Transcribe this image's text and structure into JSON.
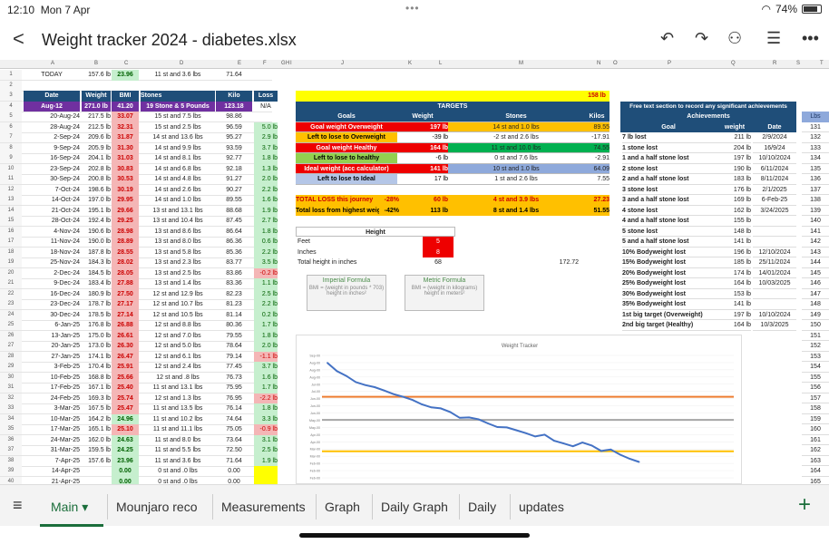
{
  "status": {
    "time": "12:10",
    "date": "Mon 7 Apr",
    "battery": "74%"
  },
  "header": {
    "title": "Weight tracker 2024 - diabetes.xlsx"
  },
  "columns": [
    "A",
    "B",
    "C",
    "D",
    "E",
    "F",
    "G",
    "H",
    "I",
    "J",
    "K",
    "L",
    "M",
    "N",
    "O",
    "P",
    "Q",
    "R",
    "S",
    "T"
  ],
  "row1": {
    "label": "TODAY",
    "weight": "157.6 lb",
    "bmi": "23.96",
    "stones": "11 st and 3.6 lbs",
    "kilo": "71.64"
  },
  "table_headers": {
    "date": "Date",
    "weight": "Weight",
    "bmi": "BMI",
    "stones": "Stones",
    "kilo": "Kilo",
    "loss": "Loss"
  },
  "aug12": {
    "date": "Aug-12",
    "weight": "271.0 lb",
    "bmi": "41.20",
    "stones": "19 Stone & 5 Pounds",
    "kilo": "123.18",
    "loss": "N/A"
  },
  "rows": [
    {
      "d": "20-Aug-24",
      "w": "217.5 lb",
      "b": "33.07",
      "s": "15 st and 7.5 lbs",
      "k": "98.86",
      "l": "",
      "lc": "n",
      "bc": "p"
    },
    {
      "d": "28-Aug-24",
      "w": "212.5 lb",
      "b": "32.31",
      "s": "15 st and 2.5 lbs",
      "k": "96.59",
      "l": "5.0 lb",
      "lc": "g",
      "bc": "p"
    },
    {
      "d": "2-Sep-24",
      "w": "209.6 lb",
      "b": "31.87",
      "s": "14 st and 13.6 lbs",
      "k": "95.27",
      "l": "2.9 lb",
      "lc": "g",
      "bc": "p"
    },
    {
      "d": "9-Sep-24",
      "w": "205.9 lb",
      "b": "31.30",
      "s": "14 st and 9.9 lbs",
      "k": "93.59",
      "l": "3.7 lb",
      "lc": "g",
      "bc": "p"
    },
    {
      "d": "16-Sep-24",
      "w": "204.1 lb",
      "b": "31.03",
      "s": "14 st and 8.1 lbs",
      "k": "92.77",
      "l": "1.8 lb",
      "lc": "g",
      "bc": "p"
    },
    {
      "d": "23-Sep-24",
      "w": "202.8 lb",
      "b": "30.83",
      "s": "14 st and 6.8 lbs",
      "k": "92.18",
      "l": "1.3 lb",
      "lc": "g",
      "bc": "p"
    },
    {
      "d": "30-Sep-24",
      "w": "200.8 lb",
      "b": "30.53",
      "s": "14 st and 4.8 lbs",
      "k": "91.27",
      "l": "2.0 lb",
      "lc": "g",
      "bc": "p"
    },
    {
      "d": "7-Oct-24",
      "w": "198.6 lb",
      "b": "30.19",
      "s": "14 st and 2.6 lbs",
      "k": "90.27",
      "l": "2.2 lb",
      "lc": "g",
      "bc": "p"
    },
    {
      "d": "14-Oct-24",
      "w": "197.0 lb",
      "b": "29.95",
      "s": "14 st and 1.0 lbs",
      "k": "89.55",
      "l": "1.6 lb",
      "lc": "g",
      "bc": "p"
    },
    {
      "d": "21-Oct-24",
      "w": "195.1 lb",
      "b": "29.66",
      "s": "13 st and 13.1 lbs",
      "k": "88.68",
      "l": "1.9 lb",
      "lc": "g",
      "bc": "p"
    },
    {
      "d": "28-Oct-24",
      "w": "192.4 lb",
      "b": "29.25",
      "s": "13 st and 10.4 lbs",
      "k": "87.45",
      "l": "2.7 lb",
      "lc": "g",
      "bc": "p"
    },
    {
      "d": "4-Nov-24",
      "w": "190.6 lb",
      "b": "28.98",
      "s": "13 st and 8.6 lbs",
      "k": "86.64",
      "l": "1.8 lb",
      "lc": "g",
      "bc": "p"
    },
    {
      "d": "11-Nov-24",
      "w": "190.0 lb",
      "b": "28.89",
      "s": "13 st and 8.0 lbs",
      "k": "86.36",
      "l": "0.6 lb",
      "lc": "g",
      "bc": "p"
    },
    {
      "d": "18-Nov-24",
      "w": "187.8 lb",
      "b": "28.55",
      "s": "13 st and 5.8 lbs",
      "k": "85.36",
      "l": "2.2 lb",
      "lc": "g",
      "bc": "p"
    },
    {
      "d": "25-Nov-24",
      "w": "184.3 lb",
      "b": "28.02",
      "s": "13 st and 2.3 lbs",
      "k": "83.77",
      "l": "3.5 lb",
      "lc": "g",
      "bc": "p"
    },
    {
      "d": "2-Dec-24",
      "w": "184.5 lb",
      "b": "28.05",
      "s": "13 st and 2.5 lbs",
      "k": "83.86",
      "l": "-0.2 lb",
      "lc": "r",
      "bc": "p"
    },
    {
      "d": "9-Dec-24",
      "w": "183.4 lb",
      "b": "27.88",
      "s": "13 st and 1.4 lbs",
      "k": "83.36",
      "l": "1.1 lb",
      "lc": "g",
      "bc": "p"
    },
    {
      "d": "16-Dec-24",
      "w": "180.9 lb",
      "b": "27.50",
      "s": "12 st and 12.9 lbs",
      "k": "82.23",
      "l": "2.5 lb",
      "lc": "g",
      "bc": "p"
    },
    {
      "d": "23-Dec-24",
      "w": "178.7 lb",
      "b": "27.17",
      "s": "12 st and 10.7 lbs",
      "k": "81.23",
      "l": "2.2 lb",
      "lc": "g",
      "bc": "p"
    },
    {
      "d": "30-Dec-24",
      "w": "178.5 lb",
      "b": "27.14",
      "s": "12 st and 10.5 lbs",
      "k": "81.14",
      "l": "0.2 lb",
      "lc": "g",
      "bc": "p"
    },
    {
      "d": "6-Jan-25",
      "w": "176.8 lb",
      "b": "26.88",
      "s": "12 st and 8.8 lbs",
      "k": "80.36",
      "l": "1.7 lb",
      "lc": "g",
      "bc": "p"
    },
    {
      "d": "13-Jan-25",
      "w": "175.0 lb",
      "b": "26.61",
      "s": "12 st and 7.0 lbs",
      "k": "79.55",
      "l": "1.8 lb",
      "lc": "g",
      "bc": "p"
    },
    {
      "d": "20-Jan-25",
      "w": "173.0 lb",
      "b": "26.30",
      "s": "12 st and 5.0 lbs",
      "k": "78.64",
      "l": "2.0 lb",
      "lc": "g",
      "bc": "p"
    },
    {
      "d": "27-Jan-25",
      "w": "174.1 lb",
      "b": "26.47",
      "s": "12 st and 6.1 lbs",
      "k": "79.14",
      "l": "-1.1 lb",
      "lc": "r",
      "bc": "p"
    },
    {
      "d": "3-Feb-25",
      "w": "170.4 lb",
      "b": "25.91",
      "s": "12 st and 2.4 lbs",
      "k": "77.45",
      "l": "3.7 lb",
      "lc": "g",
      "bc": "p"
    },
    {
      "d": "10-Feb-25",
      "w": "168.8 lb",
      "b": "25.66",
      "s": "12 st and .8 lbs",
      "k": "76.73",
      "l": "1.6 lb",
      "lc": "g",
      "bc": "p"
    },
    {
      "d": "17-Feb-25",
      "w": "167.1 lb",
      "b": "25.40",
      "s": "11 st and 13.1 lbs",
      "k": "75.95",
      "l": "1.7 lb",
      "lc": "g",
      "bc": "p"
    },
    {
      "d": "24-Feb-25",
      "w": "169.3 lb",
      "b": "25.74",
      "s": "12 st and 1.3 lbs",
      "k": "76.95",
      "l": "-2.2 lb",
      "lc": "r",
      "bc": "p"
    },
    {
      "d": "3-Mar-25",
      "w": "167.5 lb",
      "b": "25.47",
      "s": "11 st and 13.5 lbs",
      "k": "76.14",
      "l": "1.8 lb",
      "lc": "g",
      "bc": "p"
    },
    {
      "d": "10-Mar-25",
      "w": "164.2 lb",
      "b": "24.96",
      "s": "11 st and 10.2 lbs",
      "k": "74.64",
      "l": "3.3 lb",
      "lc": "g",
      "bc": "g"
    },
    {
      "d": "17-Mar-25",
      "w": "165.1 lb",
      "b": "25.10",
      "s": "11 st and 11.1 lbs",
      "k": "75.05",
      "l": "-0.9 lb",
      "lc": "r",
      "bc": "p"
    },
    {
      "d": "24-Mar-25",
      "w": "162.0 lb",
      "b": "24.63",
      "s": "11 st and 8.0 lbs",
      "k": "73.64",
      "l": "3.1 lb",
      "lc": "g",
      "bc": "g"
    },
    {
      "d": "31-Mar-25",
      "w": "159.5 lb",
      "b": "24.25",
      "s": "11 st and 5.5 lbs",
      "k": "72.50",
      "l": "2.5 lb",
      "lc": "g",
      "bc": "g"
    },
    {
      "d": "7-Apr-25",
      "w": "157.6 lb",
      "b": "23.96",
      "s": "11 st and 3.6 lbs",
      "k": "71.64",
      "l": "1.9 lb",
      "lc": "g",
      "bc": "g"
    },
    {
      "d": "14-Apr-25",
      "w": "",
      "b": "0.00",
      "s": "0 st and .0 lbs",
      "k": "0.00",
      "l": "",
      "lc": "y",
      "bc": "g"
    },
    {
      "d": "21-Apr-25",
      "w": "",
      "b": "0.00",
      "s": "0 st and .0 lbs",
      "k": "0.00",
      "l": "",
      "lc": "y",
      "bc": "g"
    }
  ],
  "targets": {
    "top_value": "158 lb",
    "title": "TARGETS",
    "headers": {
      "goals": "Goals",
      "weight": "Weight",
      "stones": "Stones",
      "kilos": "Kilos"
    },
    "rows": [
      {
        "goal": "Goal weight Overweight",
        "weight": "197 lb",
        "stones": "14 st and 1.0 lbs",
        "kilos": "89.55",
        "gc": "#e00",
        "sc": "#ffc000"
      },
      {
        "goal": "Left to lose to Overweight",
        "weight": "-39 lb",
        "stones": "-2 st and 2.6 lbs",
        "kilos": "-17.91",
        "gc": "#ffc000",
        "sc": "#fff"
      },
      {
        "goal": "Goal weight Healthy",
        "weight": "164 lb",
        "stones": "11 st and 10.0 lbs",
        "kilos": "74.55",
        "gc": "#e00",
        "sc": "#00b050"
      },
      {
        "goal": "Left to lose to healthy",
        "weight": "-6 lb",
        "stones": "0 st and 7.6 lbs",
        "kilos": "-2.91",
        "gc": "#92d050",
        "sc": "#fff"
      },
      {
        "goal": "Ideal weight (acc calculator)",
        "weight": "141 lb",
        "stones": "10 st and 1.0 lbs",
        "kilos": "64.09",
        "gc": "#e00",
        "sc": "#8ea9db"
      },
      {
        "goal": "Left to lose to Ideal",
        "weight": "17 lb",
        "stones": "1 st and 2.6 lbs",
        "kilos": "7.55",
        "gc": "#b4c6e7",
        "sc": "#fff"
      }
    ],
    "total_loss": {
      "label": "TOTAL LOSS this journey",
      "pct": "-28%",
      "weight": "60 lb",
      "stones": "4 st and 3.9 lbs",
      "kilos": "27.23"
    },
    "total_high": {
      "label": "Total loss from highest weight",
      "pct": "-42%",
      "weight": "113 lb",
      "stones": "8 st and 1.4 lbs",
      "kilos": "51.55"
    }
  },
  "height": {
    "title": "Height",
    "feet_label": "Feet",
    "feet": "5",
    "inches_label": "Inches",
    "inches": "8",
    "total_label": "Total height in inches",
    "total": "68",
    "extra": "172.72"
  },
  "formulas": {
    "imperial_title": "Imperial Formula",
    "imperial_bmi": "BMI =",
    "imperial_num": "(weight in pounds * 703)",
    "imperial_den": "height in inches²",
    "metric_title": "Metric Formula",
    "metric_bmi": "BMI =",
    "metric_num": "(weight in kilograms)",
    "metric_den": "height in meters²"
  },
  "achievements": {
    "intro": "Free text section to record any significant achievements",
    "title": "Achievements",
    "headers": {
      "goal": "Goal",
      "weight": "weight",
      "date": "Date"
    },
    "rows": [
      {
        "g": "7 lb lost",
        "w": "211 lb",
        "d": "2/9/2024"
      },
      {
        "g": "1 stone lost",
        "w": "204 lb",
        "d": "16/9/24"
      },
      {
        "g": "1 and a half stone lost",
        "w": "197 lb",
        "d": "10/10/2024"
      },
      {
        "g": "2 stone lost",
        "w": "190 lb",
        "d": "6/11/2024"
      },
      {
        "g": "2 and a half stone lost",
        "w": "183 lb",
        "d": "8/11/2024"
      },
      {
        "g": "3 stone lost",
        "w": "176 lb",
        "d": "2/1/2025"
      },
      {
        "g": "3 and a half stone lost",
        "w": "169 lb",
        "d": "6-Feb-25"
      },
      {
        "g": "4 stone lost",
        "w": "162 lb",
        "d": "3/24/2025"
      },
      {
        "g": "4 and a half stone lost",
        "w": "155 lb",
        "d": ""
      },
      {
        "g": "5 stone lost",
        "w": "148 lb",
        "d": ""
      },
      {
        "g": "5 and a half stone lost",
        "w": "141 lb",
        "d": ""
      },
      {
        "g": "10% Bodyweight lost",
        "w": "196 lb",
        "d": "12/10/2024"
      },
      {
        "g": "15% Bodyweight lost",
        "w": "185 lb",
        "d": "25/11/2024"
      },
      {
        "g": "20% Bodyweight lost",
        "w": "174 lb",
        "d": "14/01/2024"
      },
      {
        "g": "25% Bodyweight lost",
        "w": "164 lb",
        "d": "10/03/2025"
      },
      {
        "g": "30% Bodyweight lost",
        "w": "153 lb",
        "d": ""
      },
      {
        "g": "35% Bodyweight lost",
        "w": "141 lb",
        "d": ""
      },
      {
        "g": "1st big target (Overweight)",
        "w": "197 lb",
        "d": "10/10/2024"
      },
      {
        "g": "2nd big target (Healthy)",
        "w": "164 lb",
        "d": "10/3/2025"
      }
    ]
  },
  "lbs": {
    "header": "Lbs",
    "values": [
      "131",
      "132",
      "133",
      "134",
      "135",
      "136",
      "137",
      "138",
      "139",
      "140",
      "141",
      "142",
      "143",
      "144",
      "145",
      "146",
      "147",
      "148",
      "149",
      "150",
      "151",
      "152",
      "153",
      "154",
      "155",
      "156",
      "157",
      "158",
      "159",
      "160",
      "161",
      "162",
      "163",
      "164",
      "165"
    ]
  },
  "row_numbers": [
    "1",
    "2",
    "3",
    "4",
    "5",
    "6",
    "7",
    "8",
    "9",
    "10",
    "11",
    "12",
    "13",
    "14",
    "15",
    "16",
    "17",
    "18",
    "19",
    "20",
    "21",
    "22",
    "23",
    "24",
    "25",
    "26",
    "27",
    "28",
    "29",
    "30",
    "31",
    "32",
    "33",
    "34",
    "35",
    "36",
    "37",
    "38",
    "39",
    "40"
  ],
  "chart_data": {
    "type": "line",
    "title": "Weight Tracker",
    "xlabel": "",
    "ylabel": "",
    "y_tick_labels": [
      "Sep-00",
      "Aug-00",
      "Aug-00",
      "Aug-00",
      "Jul-00",
      "Jul-00",
      "Jun-00",
      "Jun-00",
      "Jun-00",
      "May-00",
      "May-00",
      "Apr-00",
      "Apr-00",
      "Mar-00",
      "Mar-00",
      "Feb-00",
      "Feb-00",
      "Feb-00"
    ],
    "series": [
      {
        "values": [
          217.5,
          212.5,
          209.6,
          205.9,
          204.1,
          202.8,
          200.8,
          198.6,
          197.0,
          195.1,
          192.4,
          190.6,
          190.0,
          187.8,
          184.3,
          184.5,
          183.4,
          180.9,
          178.7,
          178.5,
          176.8,
          175.0,
          173.0,
          174.1,
          170.4,
          168.8,
          167.1,
          169.3,
          167.5,
          164.2,
          165.1,
          162.0,
          159.5,
          157.6
        ],
        "color": "#4472c4"
      }
    ],
    "reference_lines": [
      {
        "value": 197,
        "color": "#ed7d31"
      },
      {
        "value": 183,
        "color": "#a5a5a5"
      },
      {
        "value": 164,
        "color": "#ffc000"
      }
    ]
  },
  "tabs": [
    {
      "label": "Main",
      "active": true
    },
    {
      "label": "Mounjaro reco"
    },
    {
      "label": "Measurements"
    },
    {
      "label": "Graph"
    },
    {
      "label": "Daily Graph"
    },
    {
      "label": "Daily"
    },
    {
      "label": "updates"
    }
  ]
}
